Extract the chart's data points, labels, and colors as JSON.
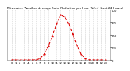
{
  "title": "Milwaukee Weather Average Solar Radiation per Hour W/m² (Last 24 Hours)",
  "bg_color": "#ffffff",
  "plot_bg_color": "#ffffff",
  "grid_color": "#aaaaaa",
  "line_color": "#dd0000",
  "text_color": "#000000",
  "hours": [
    0,
    1,
    2,
    3,
    4,
    5,
    6,
    7,
    8,
    9,
    10,
    11,
    12,
    13,
    14,
    15,
    16,
    17,
    18,
    19,
    20,
    21,
    22,
    23
  ],
  "values": [
    0,
    0,
    0,
    0,
    0,
    0,
    2,
    15,
    60,
    140,
    240,
    360,
    450,
    430,
    360,
    260,
    150,
    60,
    15,
    2,
    0,
    0,
    0,
    0
  ],
  "ylim": [
    0,
    500
  ],
  "yticks": [
    0,
    125,
    250,
    375,
    500
  ],
  "ytick_labels": [
    "0",
    "125",
    "250",
    "375",
    "500"
  ],
  "title_fontsize": 3.2,
  "tick_fontsize": 2.8,
  "line_width": 0.8,
  "marker_size": 1.2
}
